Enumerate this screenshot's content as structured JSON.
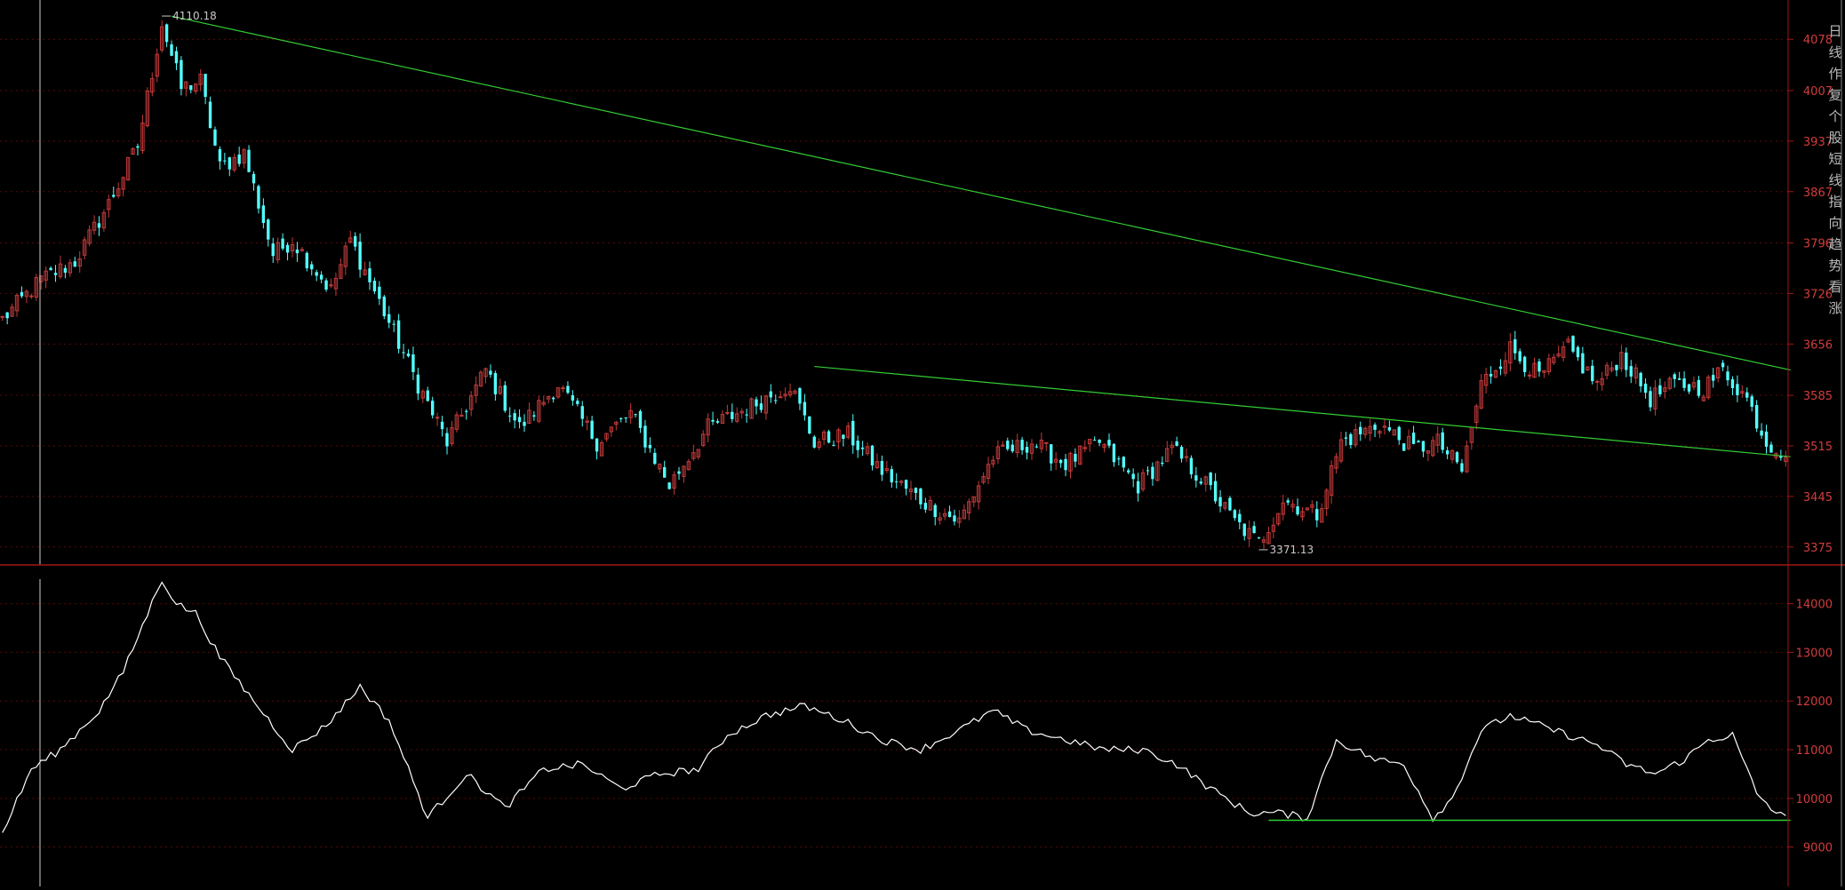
{
  "colors": {
    "background": "#000000",
    "up_candle": "#c43a3a",
    "down_candle": "#54ffff",
    "trendline": "#33cc33",
    "index_line": "#ffffff",
    "axis_label": "#d23c3c",
    "grid": "#5a0a0a",
    "panel_border": "#a01818"
  },
  "chart_data": [
    {
      "type": "candlestick",
      "y_ticks": [
        4078,
        4007,
        3937,
        3867,
        3796,
        3726,
        3656,
        3585,
        3515,
        3445,
        3375
      ],
      "y_tick_labels": [
        "4078",
        "4007",
        "3937",
        "3867",
        "3796",
        "3726",
        "3656",
        "3585",
        "3515",
        "3445",
        "3375"
      ],
      "ylim": [
        3360,
        4125
      ],
      "bars": 370,
      "annotations": [
        {
          "text": "4110.18",
          "bar": 33,
          "value": 4110.18
        },
        {
          "text": "3371.13",
          "bar": 260,
          "value": 3371.13
        }
      ],
      "close_anchors": [
        [
          0,
          3690
        ],
        [
          8,
          3745
        ],
        [
          15,
          3770
        ],
        [
          22,
          3850
        ],
        [
          28,
          3930
        ],
        [
          33,
          4100
        ],
        [
          37,
          4010
        ],
        [
          41,
          4020
        ],
        [
          45,
          3900
        ],
        [
          50,
          3920
        ],
        [
          56,
          3780
        ],
        [
          60,
          3800
        ],
        [
          68,
          3730
        ],
        [
          72,
          3800
        ],
        [
          79,
          3700
        ],
        [
          86,
          3600
        ],
        [
          92,
          3520
        ],
        [
          100,
          3620
        ],
        [
          107,
          3540
        ],
        [
          115,
          3600
        ],
        [
          123,
          3520
        ],
        [
          130,
          3560
        ],
        [
          138,
          3460
        ],
        [
          146,
          3540
        ],
        [
          155,
          3570
        ],
        [
          163,
          3600
        ],
        [
          168,
          3520
        ],
        [
          175,
          3530
        ],
        [
          182,
          3480
        ],
        [
          190,
          3440
        ],
        [
          198,
          3410
        ],
        [
          205,
          3500
        ],
        [
          213,
          3520
        ],
        [
          220,
          3490
        ],
        [
          227,
          3520
        ],
        [
          235,
          3460
        ],
        [
          242,
          3510
        ],
        [
          248,
          3470
        ],
        [
          255,
          3410
        ],
        [
          260,
          3380
        ],
        [
          265,
          3440
        ],
        [
          272,
          3420
        ],
        [
          277,
          3520
        ],
        [
          285,
          3545
        ],
        [
          292,
          3510
        ],
        [
          297,
          3520
        ],
        [
          302,
          3480
        ],
        [
          306,
          3600
        ],
        [
          312,
          3650
        ],
        [
          318,
          3610
        ],
        [
          324,
          3650
        ],
        [
          330,
          3600
        ],
        [
          335,
          3640
        ],
        [
          341,
          3580
        ],
        [
          346,
          3600
        ],
        [
          352,
          3595
        ],
        [
          356,
          3620
        ],
        [
          361,
          3580
        ],
        [
          365,
          3520
        ],
        [
          369,
          3505
        ]
      ],
      "trendlines": [
        {
          "from": {
            "bar": 35,
            "value": 4110
          },
          "to": {
            "bar": 370,
            "value": 3620
          }
        },
        {
          "from": {
            "bar": 168,
            "value": 3625
          },
          "to": {
            "bar": 370,
            "value": 3500
          }
        }
      ]
    },
    {
      "type": "line",
      "y_ticks": [
        14000,
        13000,
        12000,
        11000,
        10000,
        9000
      ],
      "y_tick_labels": [
        "14000",
        "13000",
        "12000",
        "11000",
        "10000",
        "9000"
      ],
      "ylim": [
        8300,
        14650
      ],
      "series": [
        {
          "points": [
            [
              0,
              9300
            ],
            [
              6,
              10600
            ],
            [
              12,
              11000
            ],
            [
              20,
              11800
            ],
            [
              25,
              12600
            ],
            [
              33,
              14500
            ],
            [
              36,
              14000
            ],
            [
              40,
              13800
            ],
            [
              45,
              12900
            ],
            [
              52,
              12000
            ],
            [
              60,
              11000
            ],
            [
              67,
              11500
            ],
            [
              74,
              12300
            ],
            [
              80,
              11600
            ],
            [
              88,
              9600
            ],
            [
              96,
              10500
            ],
            [
              104,
              9800
            ],
            [
              112,
              10600
            ],
            [
              120,
              10700
            ],
            [
              128,
              10200
            ],
            [
              136,
              10500
            ],
            [
              144,
              10600
            ],
            [
              150,
              11300
            ],
            [
              158,
              11700
            ],
            [
              166,
              11900
            ],
            [
              174,
              11600
            ],
            [
              182,
              11200
            ],
            [
              190,
              11000
            ],
            [
              198,
              11400
            ],
            [
              205,
              11800
            ],
            [
              212,
              11400
            ],
            [
              220,
              11200
            ],
            [
              228,
              11000
            ],
            [
              236,
              11000
            ],
            [
              243,
              10700
            ],
            [
              250,
              10200
            ],
            [
              258,
              9700
            ],
            [
              264,
              9700
            ],
            [
              270,
              9600
            ],
            [
              276,
              11200
            ],
            [
              284,
              10800
            ],
            [
              290,
              10700
            ],
            [
              296,
              9600
            ],
            [
              300,
              10000
            ],
            [
              306,
              11400
            ],
            [
              312,
              11700
            ],
            [
              318,
              11500
            ],
            [
              324,
              11300
            ],
            [
              330,
              11100
            ],
            [
              336,
              10700
            ],
            [
              342,
              10500
            ],
            [
              348,
              10800
            ],
            [
              353,
              11200
            ],
            [
              358,
              11300
            ],
            [
              363,
              10100
            ],
            [
              367,
              9700
            ],
            [
              369,
              9600
            ]
          ]
        }
      ],
      "trendlines": [
        {
          "from": {
            "bar": 262,
            "value": 9550
          },
          "to": {
            "bar": 370,
            "value": 9550
          }
        }
      ]
    }
  ],
  "side_text": [
    "日",
    "线",
    "作",
    "复",
    "个",
    "股",
    "短",
    "线",
    "指",
    "向",
    "趋",
    "势",
    "看",
    "涨"
  ]
}
